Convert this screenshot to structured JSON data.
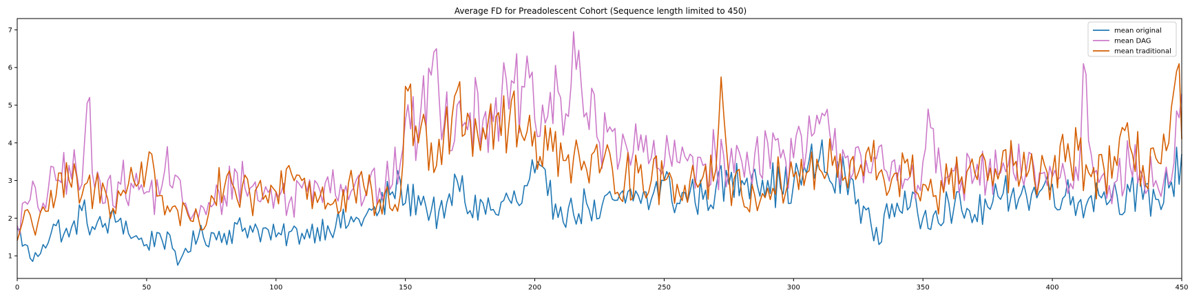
{
  "chart_data": {
    "type": "line",
    "title": "Average FD for Preadolescent Cohort (Sequence length limited to 450)",
    "xlabel": "",
    "ylabel": "",
    "xlim": [
      0,
      450
    ],
    "ylim": [
      0.4,
      7.3
    ],
    "xticks": [
      0,
      50,
      100,
      150,
      200,
      250,
      300,
      350,
      400,
      450
    ],
    "yticks": [
      1,
      2,
      3,
      4,
      5,
      6,
      7
    ],
    "grid": false,
    "legend": "top-right",
    "series": [
      {
        "name": "mean original",
        "color": "#1f77b4",
        "keypoints": [
          [
            0,
            1.7
          ],
          [
            3,
            1.3
          ],
          [
            6,
            0.85
          ],
          [
            10,
            1.3
          ],
          [
            15,
            1.8
          ],
          [
            20,
            1.5
          ],
          [
            25,
            2.2
          ],
          [
            30,
            1.7
          ],
          [
            40,
            2.0
          ],
          [
            45,
            1.5
          ],
          [
            50,
            1.3
          ],
          [
            55,
            1.6
          ],
          [
            60,
            1.2
          ],
          [
            62,
            0.75
          ],
          [
            65,
            1.2
          ],
          [
            70,
            1.5
          ],
          [
            80,
            1.6
          ],
          [
            90,
            1.8
          ],
          [
            100,
            1.5
          ],
          [
            110,
            1.6
          ],
          [
            120,
            1.8
          ],
          [
            130,
            1.9
          ],
          [
            140,
            2.2
          ],
          [
            145,
            2.7
          ],
          [
            148,
            3.0
          ],
          [
            150,
            2.4
          ],
          [
            155,
            2.6
          ],
          [
            160,
            2.2
          ],
          [
            165,
            2.0
          ],
          [
            170,
            3.0
          ],
          [
            175,
            2.2
          ],
          [
            180,
            2.4
          ],
          [
            185,
            2.1
          ],
          [
            190,
            2.5
          ],
          [
            195,
            2.4
          ],
          [
            200,
            3.2
          ],
          [
            205,
            2.6
          ],
          [
            210,
            2.3
          ],
          [
            215,
            2.1
          ],
          [
            220,
            2.4
          ],
          [
            225,
            2.0
          ],
          [
            230,
            2.5
          ],
          [
            235,
            2.4
          ],
          [
            240,
            2.6
          ],
          [
            245,
            2.5
          ],
          [
            250,
            3.0
          ],
          [
            255,
            2.4
          ],
          [
            260,
            2.7
          ],
          [
            265,
            2.5
          ],
          [
            270,
            2.8
          ],
          [
            275,
            2.9
          ],
          [
            280,
            3.0
          ],
          [
            285,
            3.3
          ],
          [
            290,
            3.0
          ],
          [
            295,
            2.8
          ],
          [
            300,
            2.9
          ],
          [
            305,
            3.2
          ],
          [
            310,
            3.6
          ],
          [
            315,
            2.9
          ],
          [
            320,
            3.1
          ],
          [
            325,
            2.5
          ],
          [
            330,
            1.8
          ],
          [
            333,
            1.3
          ],
          [
            335,
            2.1
          ],
          [
            340,
            2.4
          ],
          [
            345,
            2.3
          ],
          [
            350,
            2.0
          ],
          [
            355,
            2.2
          ],
          [
            360,
            2.4
          ],
          [
            365,
            2.2
          ],
          [
            370,
            2.1
          ],
          [
            375,
            2.3
          ],
          [
            380,
            2.5
          ],
          [
            385,
            2.8
          ],
          [
            390,
            2.6
          ],
          [
            395,
            2.7
          ],
          [
            400,
            2.9
          ],
          [
            405,
            2.6
          ],
          [
            410,
            2.4
          ],
          [
            415,
            2.6
          ],
          [
            420,
            2.7
          ],
          [
            425,
            2.6
          ],
          [
            430,
            2.7
          ],
          [
            435,
            2.5
          ],
          [
            440,
            2.5
          ],
          [
            445,
            2.8
          ],
          [
            450,
            3.7
          ]
        ]
      },
      {
        "name": "mean DAG",
        "color": "#cc79c9",
        "keypoints": [
          [
            0,
            1.8
          ],
          [
            5,
            2.5
          ],
          [
            10,
            2.4
          ],
          [
            15,
            3.0
          ],
          [
            20,
            3.4
          ],
          [
            25,
            2.9
          ],
          [
            27,
            5.05
          ],
          [
            30,
            2.8
          ],
          [
            35,
            3.0
          ],
          [
            40,
            2.9
          ],
          [
            45,
            2.8
          ],
          [
            50,
            2.7
          ],
          [
            55,
            2.6
          ],
          [
            58,
            3.9
          ],
          [
            60,
            2.8
          ],
          [
            65,
            2.4
          ],
          [
            70,
            2.0
          ],
          [
            75,
            2.3
          ],
          [
            80,
            2.6
          ],
          [
            85,
            3.2
          ],
          [
            90,
            2.8
          ],
          [
            95,
            2.6
          ],
          [
            100,
            2.7
          ],
          [
            105,
            2.4
          ],
          [
            110,
            2.8
          ],
          [
            115,
            3.0
          ],
          [
            120,
            3.1
          ],
          [
            125,
            2.9
          ],
          [
            130,
            2.8
          ],
          [
            135,
            2.7
          ],
          [
            140,
            2.8
          ],
          [
            145,
            2.9
          ],
          [
            150,
            4.6
          ],
          [
            155,
            4.2
          ],
          [
            160,
            5.8
          ],
          [
            162,
            6.5
          ],
          [
            165,
            4.5
          ],
          [
            170,
            5.0
          ],
          [
            175,
            4.8
          ],
          [
            180,
            4.6
          ],
          [
            185,
            5.2
          ],
          [
            190,
            4.9
          ],
          [
            195,
            5.5
          ],
          [
            200,
            4.6
          ],
          [
            205,
            4.7
          ],
          [
            210,
            5.2
          ],
          [
            213,
            4.7
          ],
          [
            215,
            6.95
          ],
          [
            218,
            5.5
          ],
          [
            220,
            4.8
          ],
          [
            225,
            4.0
          ],
          [
            230,
            4.3
          ],
          [
            235,
            4.0
          ],
          [
            240,
            3.8
          ],
          [
            245,
            3.6
          ],
          [
            250,
            3.4
          ],
          [
            255,
            3.5
          ],
          [
            260,
            3.7
          ],
          [
            265,
            3.4
          ],
          [
            270,
            3.6
          ],
          [
            275,
            3.3
          ],
          [
            280,
            3.5
          ],
          [
            285,
            3.7
          ],
          [
            290,
            4.0
          ],
          [
            295,
            3.6
          ],
          [
            300,
            3.6
          ],
          [
            305,
            3.8
          ],
          [
            310,
            4.5
          ],
          [
            315,
            3.8
          ],
          [
            320,
            3.6
          ],
          [
            325,
            3.9
          ],
          [
            330,
            3.2
          ],
          [
            335,
            3.3
          ],
          [
            340,
            3.0
          ],
          [
            345,
            3.1
          ],
          [
            350,
            3.5
          ],
          [
            352,
            4.9
          ],
          [
            355,
            3.2
          ],
          [
            360,
            3.1
          ],
          [
            365,
            3.0
          ],
          [
            370,
            3.1
          ],
          [
            375,
            3.1
          ],
          [
            380,
            3.2
          ],
          [
            385,
            3.2
          ],
          [
            390,
            3.3
          ],
          [
            395,
            3.2
          ],
          [
            400,
            3.1
          ],
          [
            405,
            3.1
          ],
          [
            410,
            3.0
          ],
          [
            412,
            6.1
          ],
          [
            415,
            3.7
          ],
          [
            420,
            3.2
          ],
          [
            425,
            3.0
          ],
          [
            430,
            3.4
          ],
          [
            435,
            3.1
          ],
          [
            440,
            3.0
          ],
          [
            445,
            2.9
          ],
          [
            450,
            5.3
          ]
        ]
      },
      {
        "name": "mean traditional",
        "color": "#d55e00",
        "keypoints": [
          [
            0,
            1.4
          ],
          [
            3,
            2.2
          ],
          [
            6,
            1.8
          ],
          [
            10,
            2.3
          ],
          [
            15,
            2.6
          ],
          [
            20,
            3.0
          ],
          [
            25,
            2.6
          ],
          [
            30,
            2.8
          ],
          [
            35,
            2.5
          ],
          [
            40,
            2.6
          ],
          [
            45,
            3.0
          ],
          [
            50,
            3.3
          ],
          [
            52,
            3.7
          ],
          [
            55,
            2.6
          ],
          [
            60,
            2.3
          ],
          [
            63,
            1.8
          ],
          [
            65,
            2.3
          ],
          [
            70,
            2.0
          ],
          [
            72,
            1.7
          ],
          [
            75,
            2.6
          ],
          [
            80,
            2.8
          ],
          [
            85,
            2.5
          ],
          [
            90,
            2.6
          ],
          [
            95,
            2.5
          ],
          [
            100,
            2.7
          ],
          [
            105,
            3.4
          ],
          [
            110,
            3.0
          ],
          [
            115,
            2.7
          ],
          [
            120,
            2.4
          ],
          [
            125,
            2.2
          ],
          [
            130,
            2.8
          ],
          [
            135,
            2.6
          ],
          [
            140,
            2.5
          ],
          [
            145,
            2.2
          ],
          [
            148,
            2.6
          ],
          [
            150,
            5.5
          ],
          [
            155,
            4.0
          ],
          [
            160,
            4.0
          ],
          [
            165,
            4.3
          ],
          [
            170,
            5.4
          ],
          [
            175,
            4.6
          ],
          [
            180,
            4.4
          ],
          [
            185,
            4.7
          ],
          [
            190,
            4.5
          ],
          [
            195,
            4.2
          ],
          [
            200,
            4.3
          ],
          [
            205,
            3.8
          ],
          [
            210,
            4.0
          ],
          [
            215,
            3.6
          ],
          [
            220,
            3.3
          ],
          [
            225,
            3.2
          ],
          [
            230,
            3.3
          ],
          [
            235,
            3.1
          ],
          [
            240,
            3.2
          ],
          [
            245,
            3.0
          ],
          [
            250,
            3.0
          ],
          [
            255,
            2.9
          ],
          [
            260,
            3.0
          ],
          [
            265,
            3.1
          ],
          [
            270,
            3.3
          ],
          [
            272,
            5.75
          ],
          [
            275,
            3.1
          ],
          [
            280,
            2.6
          ],
          [
            285,
            2.6
          ],
          [
            290,
            2.8
          ],
          [
            295,
            3.0
          ],
          [
            300,
            3.1
          ],
          [
            305,
            3.2
          ],
          [
            310,
            3.3
          ],
          [
            315,
            3.4
          ],
          [
            320,
            3.1
          ],
          [
            325,
            3.2
          ],
          [
            330,
            3.5
          ],
          [
            335,
            3.0
          ],
          [
            340,
            3.2
          ],
          [
            345,
            3.1
          ],
          [
            350,
            2.9
          ],
          [
            355,
            2.6
          ],
          [
            360,
            2.9
          ],
          [
            365,
            3.1
          ],
          [
            370,
            3.2
          ],
          [
            375,
            3.0
          ],
          [
            380,
            3.3
          ],
          [
            385,
            3.4
          ],
          [
            390,
            3.1
          ],
          [
            395,
            3.0
          ],
          [
            400,
            3.2
          ],
          [
            405,
            3.5
          ],
          [
            410,
            3.8
          ],
          [
            415,
            3.1
          ],
          [
            420,
            3.3
          ],
          [
            425,
            3.4
          ],
          [
            430,
            3.9
          ],
          [
            435,
            3.4
          ],
          [
            440,
            3.6
          ],
          [
            445,
            4.0
          ],
          [
            448,
            5.9
          ],
          [
            450,
            4.1
          ]
        ]
      }
    ]
  }
}
